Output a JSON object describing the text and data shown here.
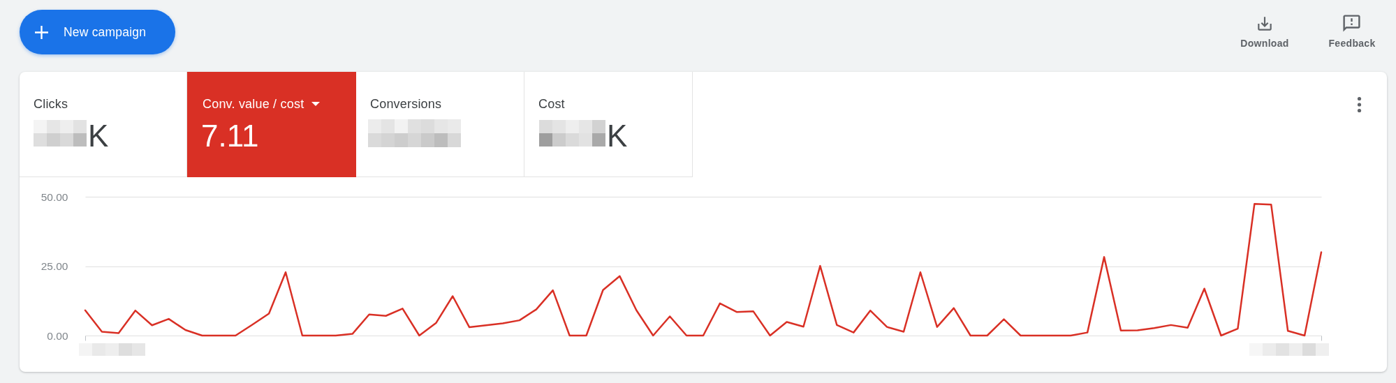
{
  "chart_data": [
    {
      "type": "other",
      "annotations": [
        "New campaign",
        "Download",
        "Feedback",
        "Clicks",
        "K",
        "Conv. value / cost",
        "7.11",
        "Conversions",
        "Cost",
        "K"
      ]
    },
    {
      "type": "line",
      "categories": [
        null,
        null,
        null,
        null,
        null,
        null,
        null,
        null,
        null,
        null,
        null,
        null,
        null,
        null,
        null,
        null,
        null,
        null,
        null,
        null,
        null,
        null,
        null,
        null,
        null,
        null,
        null,
        null,
        null,
        null,
        null,
        null,
        null,
        null,
        null,
        null,
        null,
        null,
        null,
        null,
        null,
        null,
        null,
        null,
        null,
        null,
        null,
        null,
        null,
        null,
        null,
        null,
        null,
        null,
        null,
        null,
        null,
        null,
        null,
        null,
        null,
        null,
        null,
        null,
        null,
        null,
        null,
        null,
        null,
        null,
        null,
        null,
        null,
        null,
        null
      ],
      "values": [
        9.1,
        1.4,
        0.9,
        9.0,
        3.7,
        6.0,
        2.0,
        0,
        0,
        0,
        3.9,
        7.9,
        22.8,
        0,
        0,
        0,
        0.6,
        7.6,
        7.1,
        9.7,
        0,
        4.5,
        14.2,
        3.0,
        3.7,
        4.4,
        5.5,
        9.4,
        16.3,
        0,
        0,
        16.4,
        21.4,
        9.1,
        0,
        6.9,
        0,
        0,
        11.6,
        8.5,
        8.7,
        0,
        4.9,
        3.2,
        25.1,
        3.8,
        1.1,
        9.0,
        3.1,
        1.4,
        22.8,
        3.1,
        9.9,
        0,
        0,
        5.9,
        0,
        0,
        0,
        0,
        1.1,
        28.3,
        1.8,
        1.9,
        2.7,
        3.8,
        2.8,
        16.9,
        0,
        2.5,
        47.4,
        47.2,
        1.7,
        0,
        30.0
      ],
      "color": "#d93025",
      "line_style": "solid",
      "ylim": [
        0,
        50
      ],
      "yticks": [
        {
          "value": 0,
          "label": "0.00"
        },
        {
          "value": 25,
          "label": "25.00"
        },
        {
          "value": 50,
          "label": "50.00"
        }
      ],
      "grid": "y",
      "tick_labels": "y"
    }
  ]
}
